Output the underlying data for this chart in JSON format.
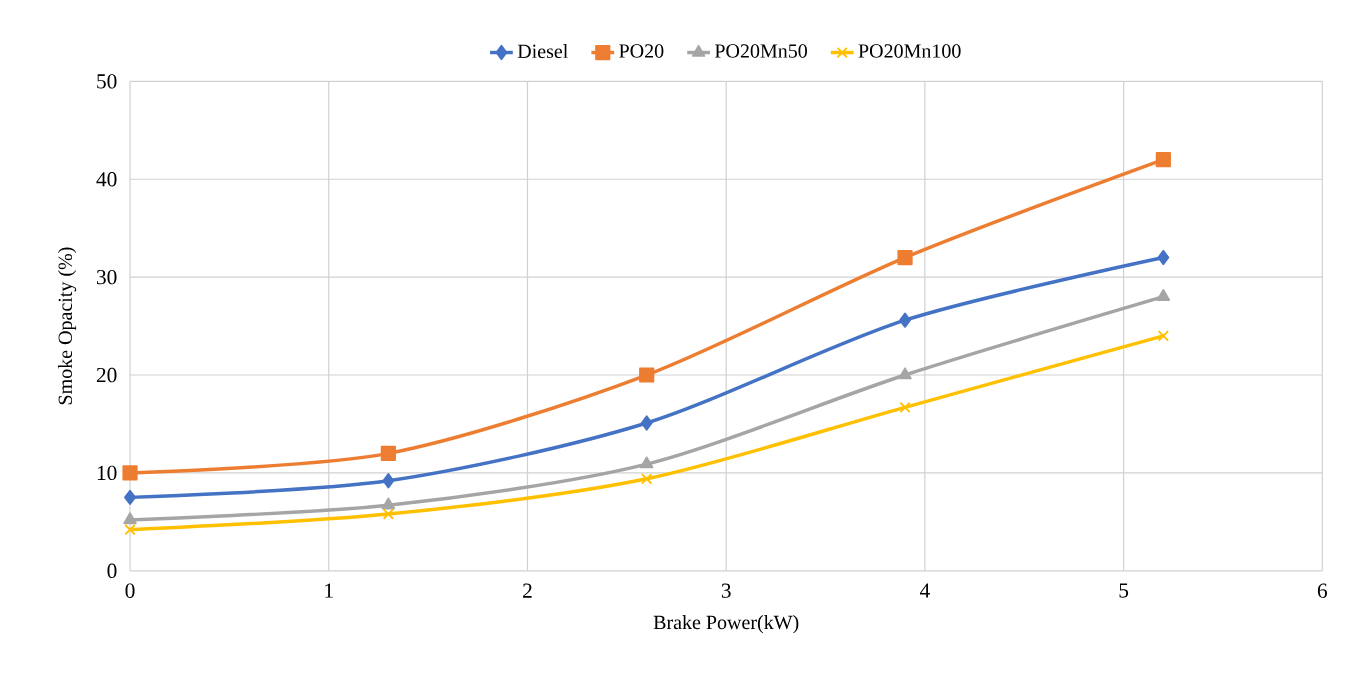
{
  "chart_data": {
    "type": "line",
    "xlabel": "Brake Power(kW)",
    "ylabel": "Smoke Opacity (%)",
    "x": [
      0,
      1.3,
      2.6,
      3.9,
      5.2
    ],
    "series": [
      {
        "name": "Diesel",
        "color": "#4472c4",
        "marker": "diamond",
        "values": [
          7.5,
          9.2,
          15.1,
          25.6,
          32
        ]
      },
      {
        "name": "PO20",
        "color": "#ed7d31",
        "marker": "square",
        "values": [
          10,
          12,
          20,
          32,
          42
        ]
      },
      {
        "name": "PO20Mn50",
        "color": "#a5a5a5",
        "marker": "triangle",
        "values": [
          5.2,
          6.7,
          10.9,
          20,
          28
        ]
      },
      {
        "name": "PO20Mn100",
        "color": "#ffc000",
        "marker": "cross",
        "values": [
          4.2,
          5.8,
          9.4,
          16.7,
          24
        ]
      }
    ],
    "xlim": [
      0,
      6
    ],
    "xticks": [
      0,
      1,
      2,
      3,
      4,
      5,
      6
    ],
    "ylim": [
      0,
      50
    ],
    "yticks": [
      0,
      10,
      20,
      30,
      40,
      50
    ],
    "grid": true,
    "legend": "top",
    "line_style": "solid"
  }
}
